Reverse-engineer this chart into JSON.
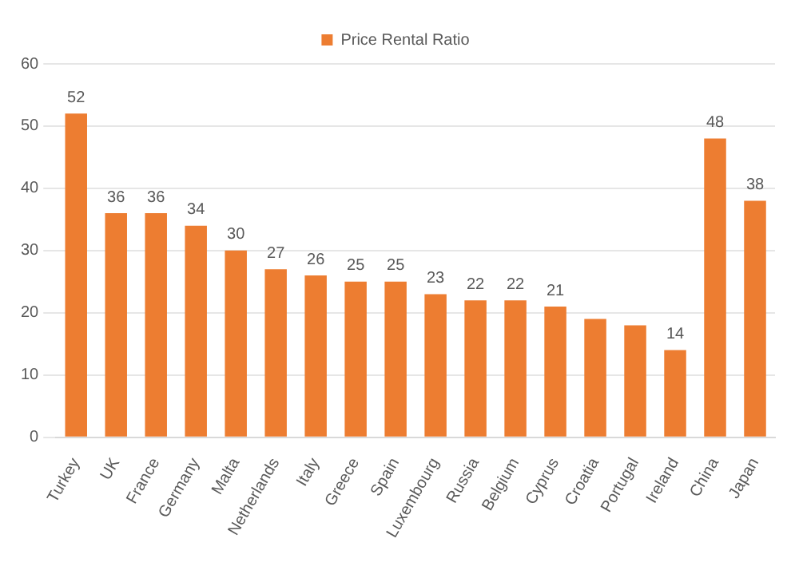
{
  "chart_data": {
    "type": "bar",
    "categories": [
      "Turkey",
      "UK",
      "France",
      "Germany",
      "Malta",
      "Netherlands",
      "Italy",
      "Greece",
      "Spain",
      "Luxembourg",
      "Russia",
      "Belgium",
      "Cyprus",
      "Croatia",
      "Portugal",
      "Ireland",
      "China",
      "Japan"
    ],
    "series": [
      {
        "name": "Price Rental Ratio",
        "color": "#ed7d31",
        "values": [
          52,
          36,
          36,
          34,
          30,
          27,
          26,
          25,
          25,
          23,
          22,
          22,
          21,
          19,
          18,
          14,
          48,
          38
        ],
        "value_labels": [
          "52",
          "36",
          "36",
          "34",
          "30",
          "27",
          "26",
          "25",
          "25",
          "23",
          "22",
          "22",
          "21",
          null,
          null,
          "14",
          "48",
          "38"
        ]
      }
    ],
    "ylim": [
      0,
      60
    ],
    "yticks": [
      0,
      10,
      20,
      30,
      40,
      50,
      60
    ],
    "grid": "y",
    "legend": "top"
  }
}
